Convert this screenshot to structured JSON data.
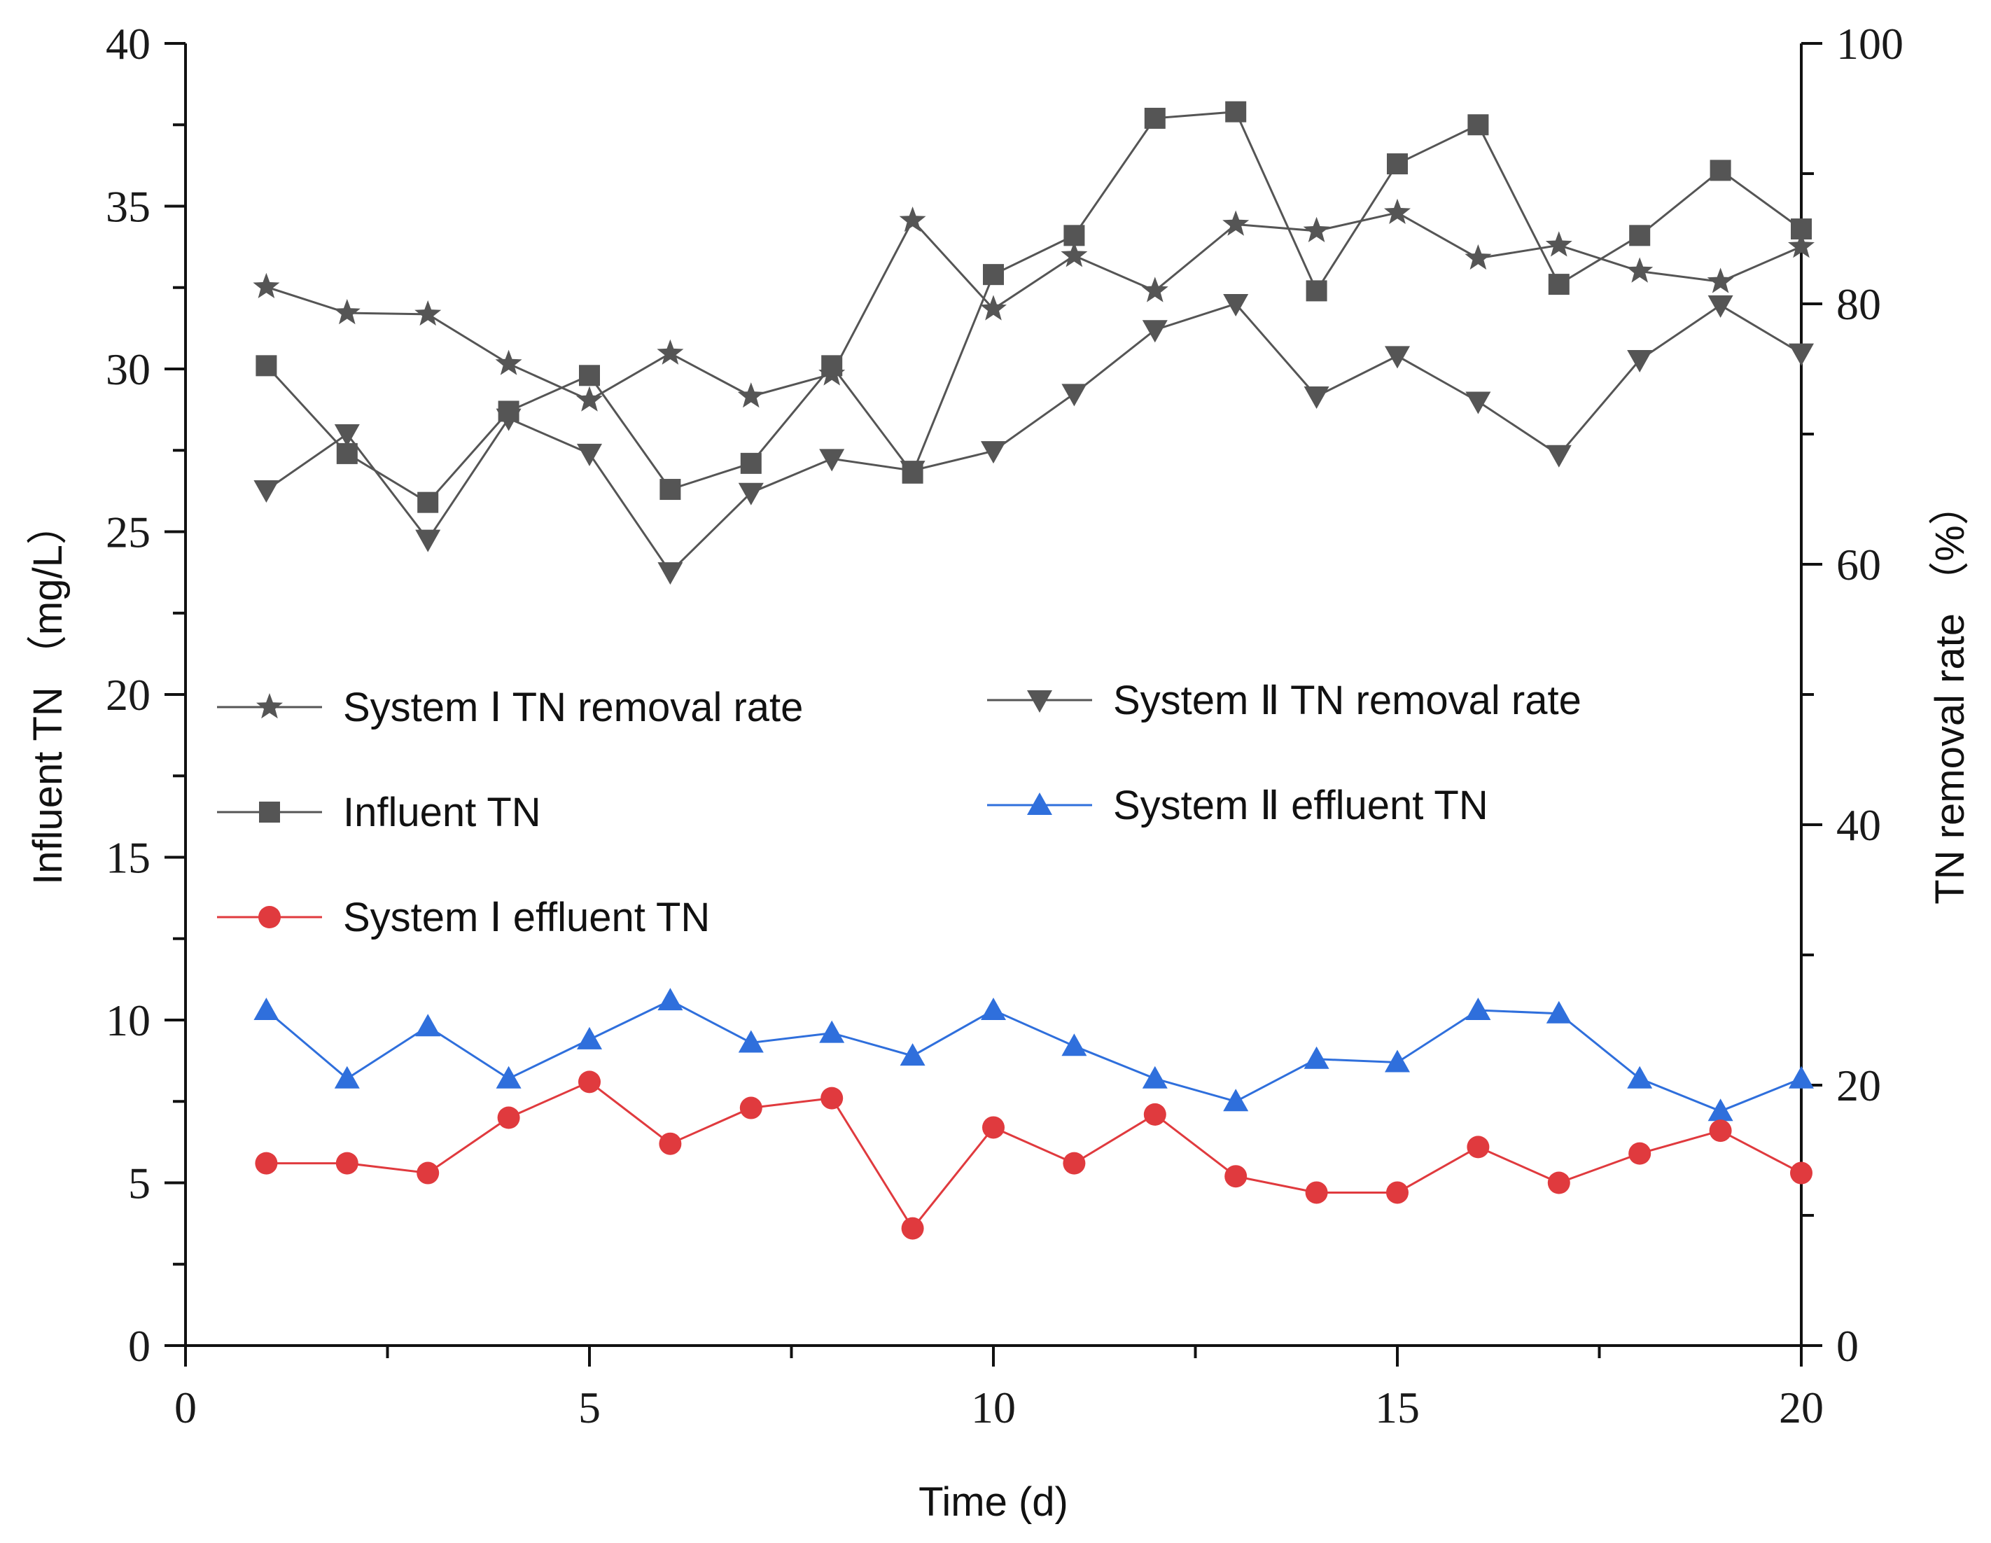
{
  "chart_data": {
    "type": "line",
    "xlabel": "Time (d)",
    "ylabel_left": "Influent TN （mg/L）",
    "ylabel_right": "TN removal rate （%）",
    "xlim": [
      0,
      20
    ],
    "ylim_left": [
      0,
      40
    ],
    "ylim_right": [
      0,
      100
    ],
    "x_ticks": [
      0,
      5,
      10,
      15,
      20
    ],
    "y_left_ticks": [
      0,
      5,
      10,
      15,
      20,
      25,
      30,
      35,
      40
    ],
    "y_right_ticks": [
      0,
      20,
      40,
      60,
      80,
      100
    ],
    "grid": false,
    "x": [
      1,
      2,
      3,
      4,
      5,
      6,
      7,
      8,
      9,
      10,
      11,
      12,
      13,
      14,
      15,
      16,
      17,
      18,
      19,
      20
    ],
    "series": [
      {
        "name": "System Ⅰ TN removal rate",
        "axis": "right",
        "marker": "star",
        "color": "#555555",
        "values": [
          81.3,
          79.3,
          79.2,
          75.4,
          72.6,
          76.2,
          72.9,
          74.6,
          86.4,
          79.6,
          83.7,
          81.0,
          86.1,
          85.6,
          87.0,
          83.5,
          84.5,
          82.5,
          81.7,
          84.4
        ]
      },
      {
        "name": "System Ⅱ TN removal rate",
        "axis": "right",
        "marker": "triangle-down",
        "color": "#555555",
        "values": [
          65.7,
          70.0,
          61.9,
          71.2,
          68.5,
          59.4,
          65.5,
          68.1,
          67.2,
          68.7,
          73.1,
          78.0,
          80.0,
          72.9,
          76.0,
          72.5,
          68.4,
          75.7,
          79.9,
          76.2
        ]
      },
      {
        "name": "Influent TN",
        "axis": "left",
        "marker": "square",
        "color": "#555555",
        "values": [
          30.1,
          27.4,
          25.9,
          28.7,
          29.8,
          26.3,
          27.1,
          30.1,
          26.8,
          32.9,
          34.1,
          37.7,
          37.9,
          32.4,
          36.3,
          37.5,
          32.6,
          34.1,
          36.1,
          34.3
        ]
      },
      {
        "name": "System Ⅱ effluent TN",
        "axis": "left",
        "marker": "triangle-up",
        "color": "#2f6fdc",
        "values": [
          10.3,
          8.2,
          9.8,
          8.2,
          9.4,
          10.6,
          9.3,
          9.6,
          8.9,
          10.3,
          9.2,
          8.2,
          7.5,
          8.8,
          8.7,
          10.3,
          10.2,
          8.2,
          7.2,
          8.2
        ]
      },
      {
        "name": "System Ⅰ effluent TN",
        "axis": "left",
        "marker": "circle",
        "color": "#e03a3e",
        "values": [
          5.6,
          5.6,
          5.3,
          7.0,
          8.1,
          6.2,
          7.3,
          7.6,
          3.6,
          6.7,
          5.6,
          7.1,
          5.2,
          4.7,
          4.7,
          6.1,
          5.0,
          5.9,
          6.6,
          5.3
        ]
      }
    ],
    "legend": [
      {
        "label": "System Ⅰ TN removal rate",
        "series": 0
      },
      {
        "label": "System Ⅱ TN removal rate",
        "series": 1
      },
      {
        "label": "Influent TN",
        "series": 2
      },
      {
        "label": "System Ⅱ effluent TN",
        "series": 3
      },
      {
        "label": "System Ⅰ effluent TN",
        "series": 4
      }
    ],
    "legend_position": "center-left"
  }
}
